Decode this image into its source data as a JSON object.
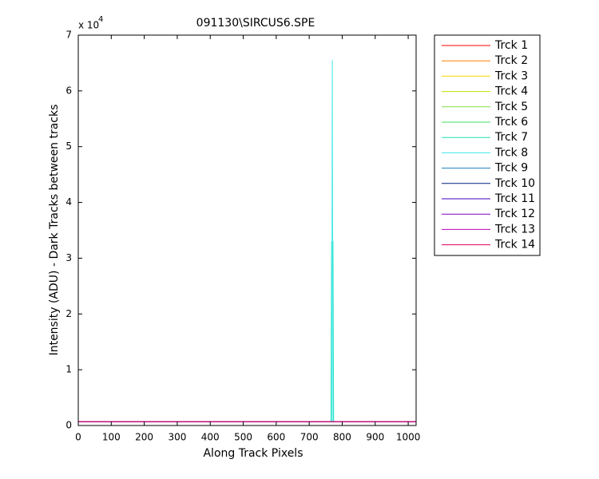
{
  "chart_data": {
    "type": "line",
    "title": "091130\\SIRCUS6.SPE",
    "xlabel": "Along Track Pixels",
    "ylabel": "Intensity (ADU) - Dark Tracks between tracks",
    "y_multiplier": "x 10",
    "y_exponent": "4",
    "x": [
      0,
      766,
      768,
      770,
      772,
      774,
      1024
    ],
    "series": [
      {
        "name": "Trck 1",
        "color": "#ff0000",
        "values": [
          700,
          700,
          700,
          700,
          700,
          700,
          700
        ]
      },
      {
        "name": "Trck 2",
        "color": "#ff8000",
        "values": [
          700,
          700,
          700,
          700,
          700,
          700,
          700
        ]
      },
      {
        "name": "Trck 3",
        "color": "#ffd700",
        "values": [
          700,
          700,
          700,
          700,
          700,
          700,
          700
        ]
      },
      {
        "name": "Trck 4",
        "color": "#c0e000",
        "values": [
          700,
          700,
          700,
          700,
          700,
          700,
          700
        ]
      },
      {
        "name": "Trck 5",
        "color": "#80e040",
        "values": [
          700,
          700,
          700,
          700,
          700,
          700,
          700
        ]
      },
      {
        "name": "Trck 6",
        "color": "#40e060",
        "values": [
          700,
          700,
          700,
          700,
          700,
          700,
          700
        ]
      },
      {
        "name": "Trck 7",
        "color": "#20e0b0",
        "values": [
          700,
          700,
          33000,
          33000,
          33000,
          700,
          700
        ]
      },
      {
        "name": "Trck 8",
        "color": "#40e8e8",
        "values": [
          700,
          700,
          700,
          65500,
          700,
          700,
          700
        ]
      },
      {
        "name": "Trck 9",
        "color": "#2080c0",
        "values": [
          700,
          700,
          700,
          700,
          700,
          700,
          700
        ]
      },
      {
        "name": "Trck 10",
        "color": "#002080",
        "values": [
          700,
          700,
          700,
          700,
          700,
          700,
          700
        ]
      },
      {
        "name": "Trck 11",
        "color": "#4000c0",
        "values": [
          700,
          700,
          700,
          700,
          700,
          700,
          700
        ]
      },
      {
        "name": "Trck 12",
        "color": "#8000c0",
        "values": [
          700,
          700,
          700,
          700,
          700,
          700,
          700
        ]
      },
      {
        "name": "Trck 13",
        "color": "#c000c0",
        "values": [
          700,
          700,
          700,
          700,
          700,
          700,
          700
        ]
      },
      {
        "name": "Trck 14",
        "color": "#e00060",
        "values": [
          700,
          700,
          700,
          700,
          700,
          700,
          700
        ]
      }
    ],
    "xlim": [
      0,
      1024
    ],
    "xticks": [
      0,
      100,
      200,
      300,
      400,
      500,
      600,
      700,
      800,
      900,
      1000
    ],
    "ylim": [
      0,
      70000
    ],
    "yticks": [
      {
        "value": 0,
        "label": "0"
      },
      {
        "value": 10000,
        "label": "1"
      },
      {
        "value": 20000,
        "label": "2"
      },
      {
        "value": 30000,
        "label": "3"
      },
      {
        "value": 40000,
        "label": "4"
      },
      {
        "value": 50000,
        "label": "5"
      },
      {
        "value": 60000,
        "label": "6"
      },
      {
        "value": 70000,
        "label": "7"
      }
    ],
    "legend": "outside-right",
    "grid": false
  }
}
